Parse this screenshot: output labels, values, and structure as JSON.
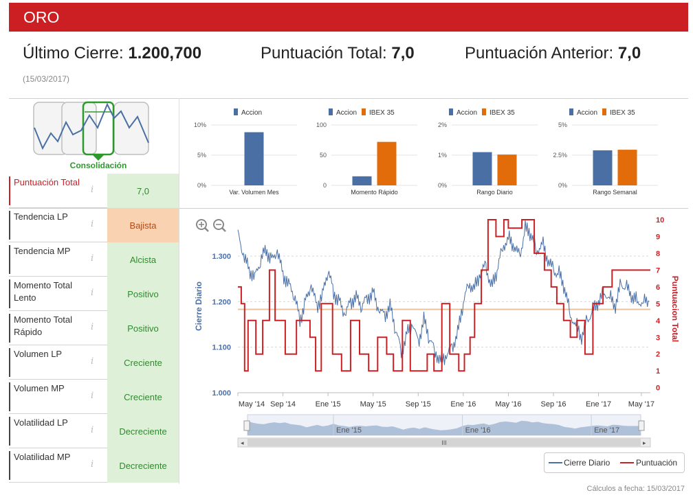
{
  "header": {
    "title": "ORO"
  },
  "kpis": {
    "last_close_label": "Último Cierre:",
    "last_close_value": "1.200,700",
    "total_score_label": "Puntuación Total:",
    "total_score_value": "7,0",
    "prev_score_label": "Puntuación Anterior:",
    "prev_score_value": "7,0",
    "date": "(15/03/2017)"
  },
  "phase": {
    "label": "Consolidación"
  },
  "indicators": [
    {
      "label": "Puntuación Total",
      "value": "7,0",
      "style": "plain-green"
    },
    {
      "label": "Tendencia LP",
      "value": "Bajista",
      "style": "orange"
    },
    {
      "label": "Tendencia MP",
      "value": "Alcista",
      "style": "green"
    },
    {
      "label": "Momento Total Lento",
      "value": "Positivo",
      "style": "green"
    },
    {
      "label": "Momento Total Rápido",
      "value": "Positivo",
      "style": "green"
    },
    {
      "label": "Volumen LP",
      "value": "Creciente",
      "style": "green"
    },
    {
      "label": "Volumen MP",
      "value": "Creciente",
      "style": "green"
    },
    {
      "label": "Volatilidad LP",
      "value": "Decreciente",
      "style": "green"
    },
    {
      "label": "Volatilidad MP",
      "value": "Decreciente",
      "style": "green"
    }
  ],
  "info_icon": "info-icon",
  "colors": {
    "brand": "#cc1f24",
    "accion": "#4a6fa5",
    "ibex": "#e36c0a",
    "close_line": "#4a6fa5",
    "score_line": "#cc1f24",
    "reference": "#e9c39c"
  },
  "chart_data": [
    {
      "type": "bar",
      "title": "Var. Volumen Mes",
      "series": [
        {
          "name": "Accion",
          "values": [
            8.8
          ]
        }
      ],
      "yticks": [
        "10%",
        "5%",
        "0%"
      ],
      "ylim": [
        0,
        10
      ]
    },
    {
      "type": "bar",
      "title": "Momento Rápido",
      "series": [
        {
          "name": "Accion",
          "values": [
            15
          ]
        },
        {
          "name": "IBEX 35",
          "values": [
            72
          ]
        }
      ],
      "yticks": [
        "100",
        "50",
        "0"
      ],
      "ylim": [
        0,
        100
      ]
    },
    {
      "type": "bar",
      "title": "Rango Diario",
      "series": [
        {
          "name": "Accion",
          "values": [
            1.1
          ]
        },
        {
          "name": "IBEX 35",
          "values": [
            1.02
          ]
        }
      ],
      "yticks": [
        "2%",
        "1%",
        "0%"
      ],
      "ylim": [
        0,
        2
      ]
    },
    {
      "type": "bar",
      "title": "Rango Semanal",
      "series": [
        {
          "name": "Accion",
          "values": [
            2.9
          ]
        },
        {
          "name": "IBEX 35",
          "values": [
            2.95
          ]
        }
      ],
      "yticks": [
        "5%",
        "2.5%",
        "0%"
      ],
      "ylim": [
        0,
        5
      ]
    },
    {
      "type": "line",
      "title": "",
      "ylabel": "Cierre Diario",
      "y2label": "Puntuacion Total",
      "ylim": [
        1000,
        1380
      ],
      "y2lim": [
        -0.3,
        10
      ],
      "yticks": [
        "1.300",
        "1.200",
        "1.100",
        "1.000"
      ],
      "y2ticks": [
        "10",
        "9",
        "8",
        "7",
        "6",
        "5",
        "4",
        "3",
        "2",
        "1",
        "0"
      ],
      "xticks": [
        "May '14",
        "Sep '14",
        "Ene '15",
        "May '15",
        "Sep '15",
        "Ene '16",
        "May '16",
        "Sep '16",
        "Ene '17",
        "May '17"
      ],
      "reference_line": 1183,
      "series": [
        {
          "name": "Cierre Diario",
          "x": [
            0,
            0.5,
            1,
            1.5,
            2,
            2.5,
            3,
            3.5,
            4,
            4.5,
            5,
            5.5,
            6,
            6.5,
            7,
            7.5,
            8,
            8.5,
            9,
            9.5,
            10,
            10.5,
            11,
            11.5,
            12,
            12.5,
            13,
            13.5,
            14,
            14.5,
            15,
            15.5,
            16,
            16.5,
            17,
            17.5,
            18,
            18.5,
            19,
            19.5,
            20,
            20.5,
            21,
            21.5,
            22,
            22.5,
            23,
            23.5,
            24,
            24.5,
            25,
            25.5,
            26,
            26.5,
            27,
            27.5,
            28,
            28.5,
            29,
            29.5,
            30,
            30.5,
            31,
            31.5,
            32,
            32.5,
            33,
            33.5,
            34,
            34.5,
            35,
            35.5,
            36,
            36.5
          ],
          "values": [
            1350,
            1300,
            1270,
            1255,
            1290,
            1315,
            1290,
            1310,
            1260,
            1240,
            1215,
            1160,
            1200,
            1235,
            1190,
            1215,
            1270,
            1220,
            1200,
            1170,
            1200,
            1210,
            1190,
            1210,
            1220,
            1180,
            1170,
            1190,
            1140,
            1090,
            1130,
            1150,
            1110,
            1160,
            1120,
            1090,
            1070,
            1080,
            1100,
            1130,
            1200,
            1240,
            1230,
            1260,
            1280,
            1230,
            1270,
            1320,
            1340,
            1320,
            1300,
            1360,
            1350,
            1310,
            1330,
            1290,
            1270,
            1260,
            1230,
            1170,
            1150,
            1120,
            1160,
            1180,
            1200,
            1220,
            1210,
            1190,
            1240,
            1230,
            1210,
            1200,
            1200,
            1200
          ]
        },
        {
          "name": "Puntuación",
          "x": [
            0,
            0.3,
            0.6,
            0.9,
            1.6,
            2.2,
            2.8,
            3.3,
            4.2,
            5.2,
            6.4,
            6.9,
            7.4,
            8.4,
            9.2,
            10.0,
            10.8,
            11.6,
            12.4,
            13.2,
            13.8,
            14.6,
            15.3,
            16.0,
            16.8,
            17.4,
            18.1,
            18.8,
            19.6,
            20.1,
            20.6,
            21.0,
            21.6,
            22.2,
            22.9,
            23.6,
            24.0,
            25.2,
            26.3,
            27.2,
            27.8,
            28.3,
            28.9,
            29.5,
            30.1,
            30.8,
            31.5,
            32.4,
            33.2,
            33.8,
            34.4,
            34.8,
            36.6
          ],
          "values": [
            6,
            5,
            1,
            4,
            2,
            4,
            7,
            4,
            2,
            4,
            3,
            1,
            5,
            2,
            1,
            4,
            2,
            1,
            3,
            2,
            1,
            4,
            1,
            1,
            2,
            1,
            5,
            2,
            1,
            2,
            3,
            5,
            7,
            10,
            9,
            10,
            9.5,
            10,
            8,
            7,
            6,
            5,
            4,
            3,
            4,
            2,
            5,
            6,
            7,
            7,
            7,
            7,
            7
          ]
        }
      ],
      "legend": [
        "Cierre Diario",
        "Puntuación"
      ],
      "navigator_labels": [
        "Ene '15",
        "Ene '16",
        "Ene '17"
      ],
      "navigator_handle": "III"
    }
  ],
  "footer": {
    "text": "Cálculos a fecha: 15/03/2017"
  }
}
